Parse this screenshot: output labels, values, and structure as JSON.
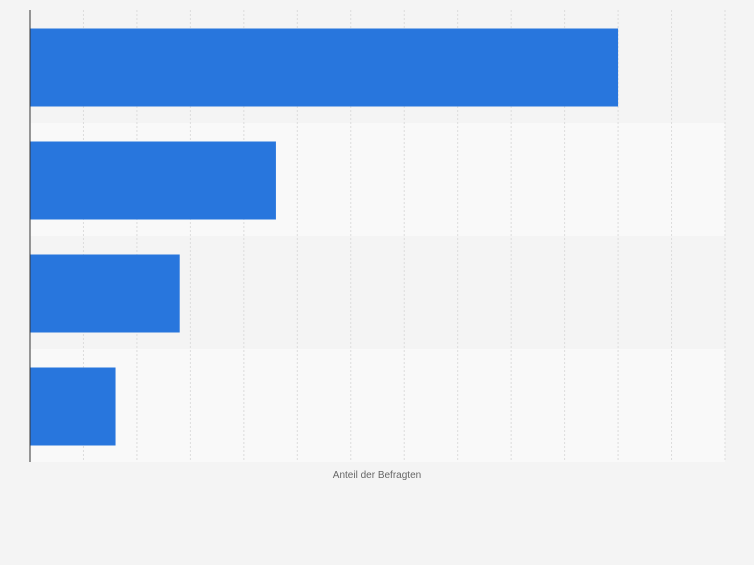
{
  "chart_data": {
    "type": "bar",
    "orientation": "horizontal",
    "title": "",
    "xlabel": "Anteil der Befragten",
    "ylabel": "",
    "categories": [
      "",
      "",
      "",
      ""
    ],
    "values": [
      55,
      23,
      14,
      8
    ],
    "xlim": [
      0,
      65
    ],
    "grid": true,
    "bar_color": "#2876dd",
    "band_colors": [
      "#f4f4f4",
      "#f9f9f9"
    ],
    "gridline_color": "#dcdcdc",
    "axis_color": "#333333"
  }
}
